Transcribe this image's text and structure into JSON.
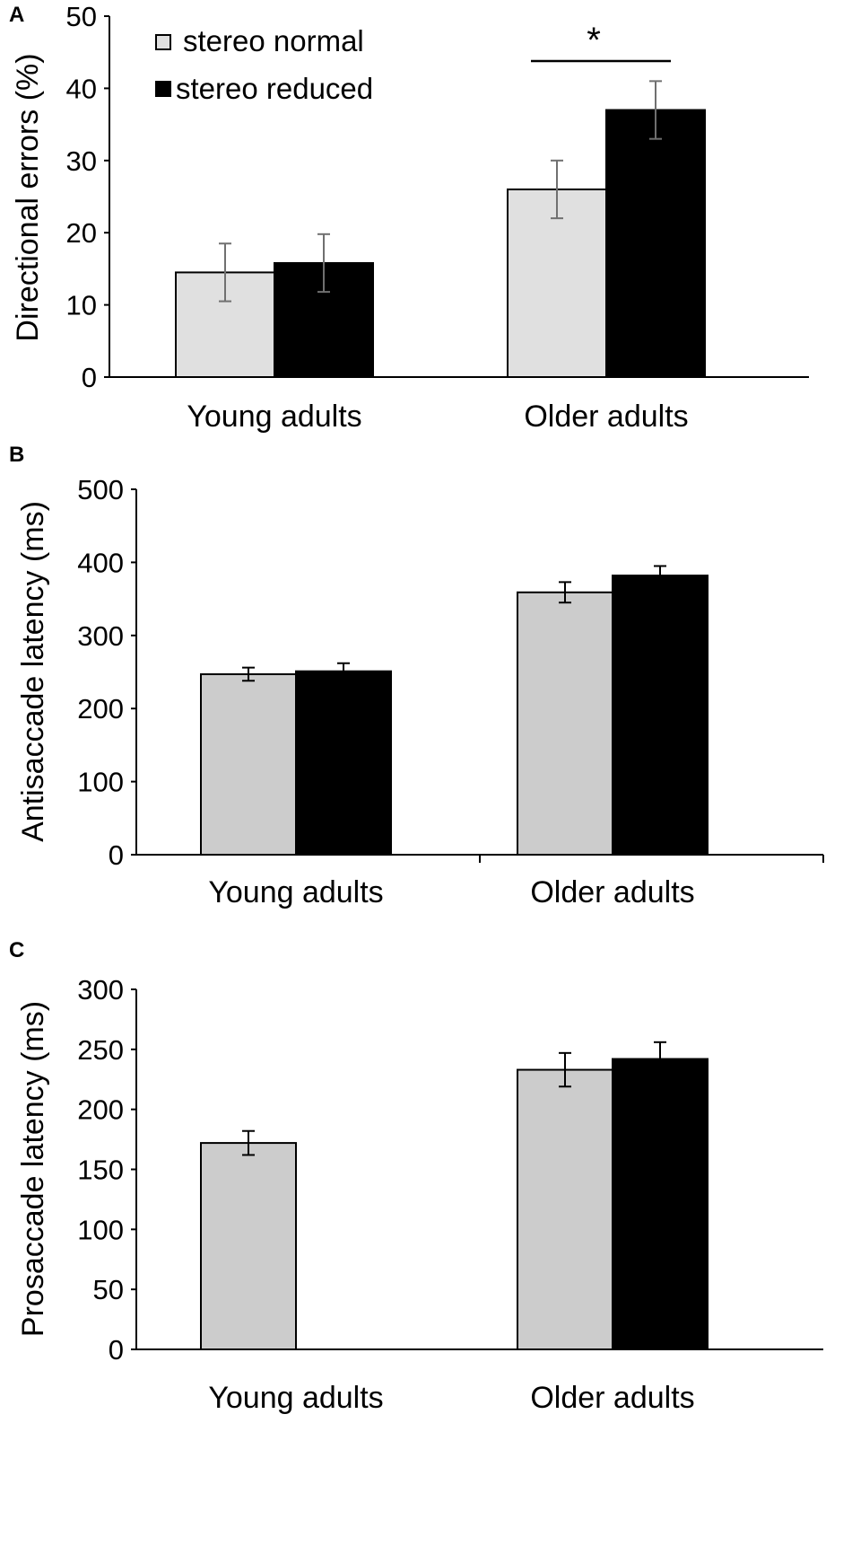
{
  "legend": {
    "normal_label": "stereo normal",
    "reduced_label": "stereo reduced"
  },
  "colors": {
    "normal_fill": "#cccccc",
    "normal_fill_a": "#e0e0e0",
    "reduced_fill": "#000000"
  },
  "chart_data": [
    {
      "panel": "A",
      "type": "bar",
      "categories": [
        "Young adults",
        "Older adults"
      ],
      "ylabel": "Directional  errors (%)",
      "xlabel": "",
      "ylim": [
        0,
        50
      ],
      "yticks": [
        0,
        10,
        20,
        30,
        40,
        50
      ],
      "series": [
        {
          "name": "stereo normal",
          "values": [
            14.5,
            26
          ],
          "errors": [
            4,
            4
          ]
        },
        {
          "name": "stereo reduced",
          "values": [
            15.8,
            37
          ],
          "errors": [
            4,
            4
          ]
        }
      ],
      "annotation": "*"
    },
    {
      "panel": "B",
      "type": "bar",
      "categories": [
        "Young adults",
        "Older adults"
      ],
      "ylabel": "Antisaccade latency (ms)",
      "xlabel": "",
      "ylim": [
        0,
        500
      ],
      "yticks": [
        0,
        100,
        200,
        300,
        400,
        500
      ],
      "series": [
        {
          "name": "stereo normal",
          "values": [
            247,
            359
          ],
          "errors": [
            9,
            14
          ]
        },
        {
          "name": "stereo reduced",
          "values": [
            251,
            382
          ],
          "errors": [
            11,
            13
          ]
        }
      ]
    },
    {
      "panel": "C",
      "type": "bar",
      "categories": [
        "Young adults",
        "Older adults"
      ],
      "ylabel": "Prosaccade latency (ms)",
      "xlabel": "",
      "ylim": [
        0,
        300
      ],
      "yticks": [
        0,
        50,
        100,
        150,
        200,
        250,
        300
      ],
      "series": [
        {
          "name": "stereo normal",
          "values": [
            172,
            233
          ],
          "errors": [
            10,
            14
          ]
        },
        {
          "name": "stereo reduced",
          "values": [
            null,
            242
          ],
          "errors": [
            null,
            14
          ]
        }
      ]
    }
  ]
}
